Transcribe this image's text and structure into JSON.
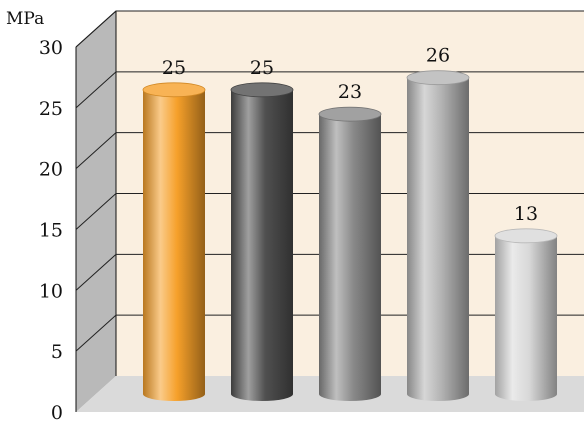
{
  "chart_data": {
    "type": "bar",
    "style": "3d-cylinder",
    "unit_label": "MPa",
    "ylim": [
      0,
      30
    ],
    "yticks": [
      0,
      5,
      10,
      15,
      20,
      25,
      30
    ],
    "grid": true,
    "legend": "none",
    "values": [
      25,
      25,
      23,
      26,
      13
    ],
    "data_labels": [
      "25",
      "25",
      "23",
      "26",
      "13"
    ],
    "bar_colors": [
      "#f6a02a",
      "#505050",
      "#8a8a8a",
      "#b4b4b4",
      "#d8d8d8"
    ],
    "back_wall_color": "#faefe0",
    "side_wall_color": "#b9b9b9",
    "floor_color": "#dadada"
  }
}
